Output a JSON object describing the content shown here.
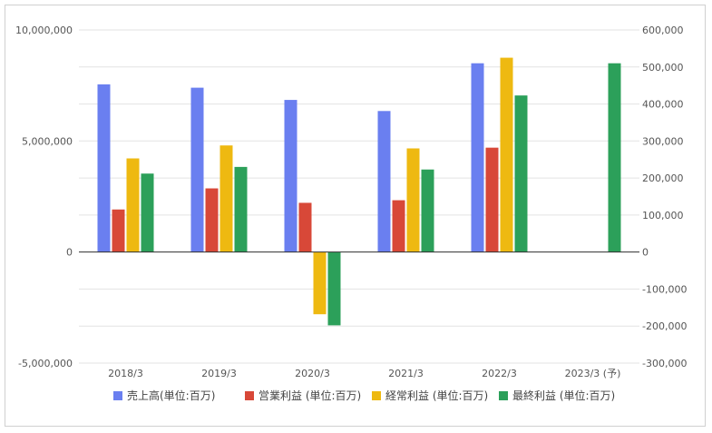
{
  "chart_data": {
    "type": "bar",
    "categories": [
      "2018/3",
      "2019/3",
      "2020/3",
      "2021/3",
      "2022/3",
      "2023/3 (予)"
    ],
    "left_axis": {
      "ylim": [
        -5000000,
        10000000
      ],
      "ticks": [
        10000000,
        5000000,
        0,
        -5000000
      ],
      "tick_labels": [
        "10,000,000",
        "5,000,000",
        "0",
        "-5,000,000"
      ]
    },
    "right_axis": {
      "ylim": [
        -300000,
        600000
      ],
      "ticks": [
        600000,
        500000,
        400000,
        300000,
        200000,
        100000,
        0,
        -100000,
        -200000,
        -300000
      ],
      "tick_labels": [
        "600,000",
        "500,000",
        "400,000",
        "300,000",
        "200,000",
        "100,000",
        "0",
        "-100,000",
        "-200,000",
        "-300,000"
      ]
    },
    "series": [
      {
        "name": "売上高(単位:百万)",
        "axis": "left",
        "color": "#6a7ff0",
        "values": [
          7550000,
          7400000,
          6850000,
          6350000,
          8500000,
          null
        ]
      },
      {
        "name": "営業利益 (単位:百万)",
        "axis": "right",
        "color": "#d84838",
        "values": [
          115000,
          172000,
          133000,
          140000,
          282000,
          null
        ]
      },
      {
        "name": "経常利益 (単位:百万)",
        "axis": "right",
        "color": "#eeb911",
        "values": [
          253000,
          288000,
          -168000,
          280000,
          525000,
          null
        ]
      },
      {
        "name": "最終利益 (単位:百万)",
        "axis": "right",
        "color": "#2ca05a",
        "values": [
          212000,
          230000,
          -198000,
          223000,
          423000,
          510000
        ]
      }
    ],
    "grid": true,
    "legend_position": "bottom"
  }
}
